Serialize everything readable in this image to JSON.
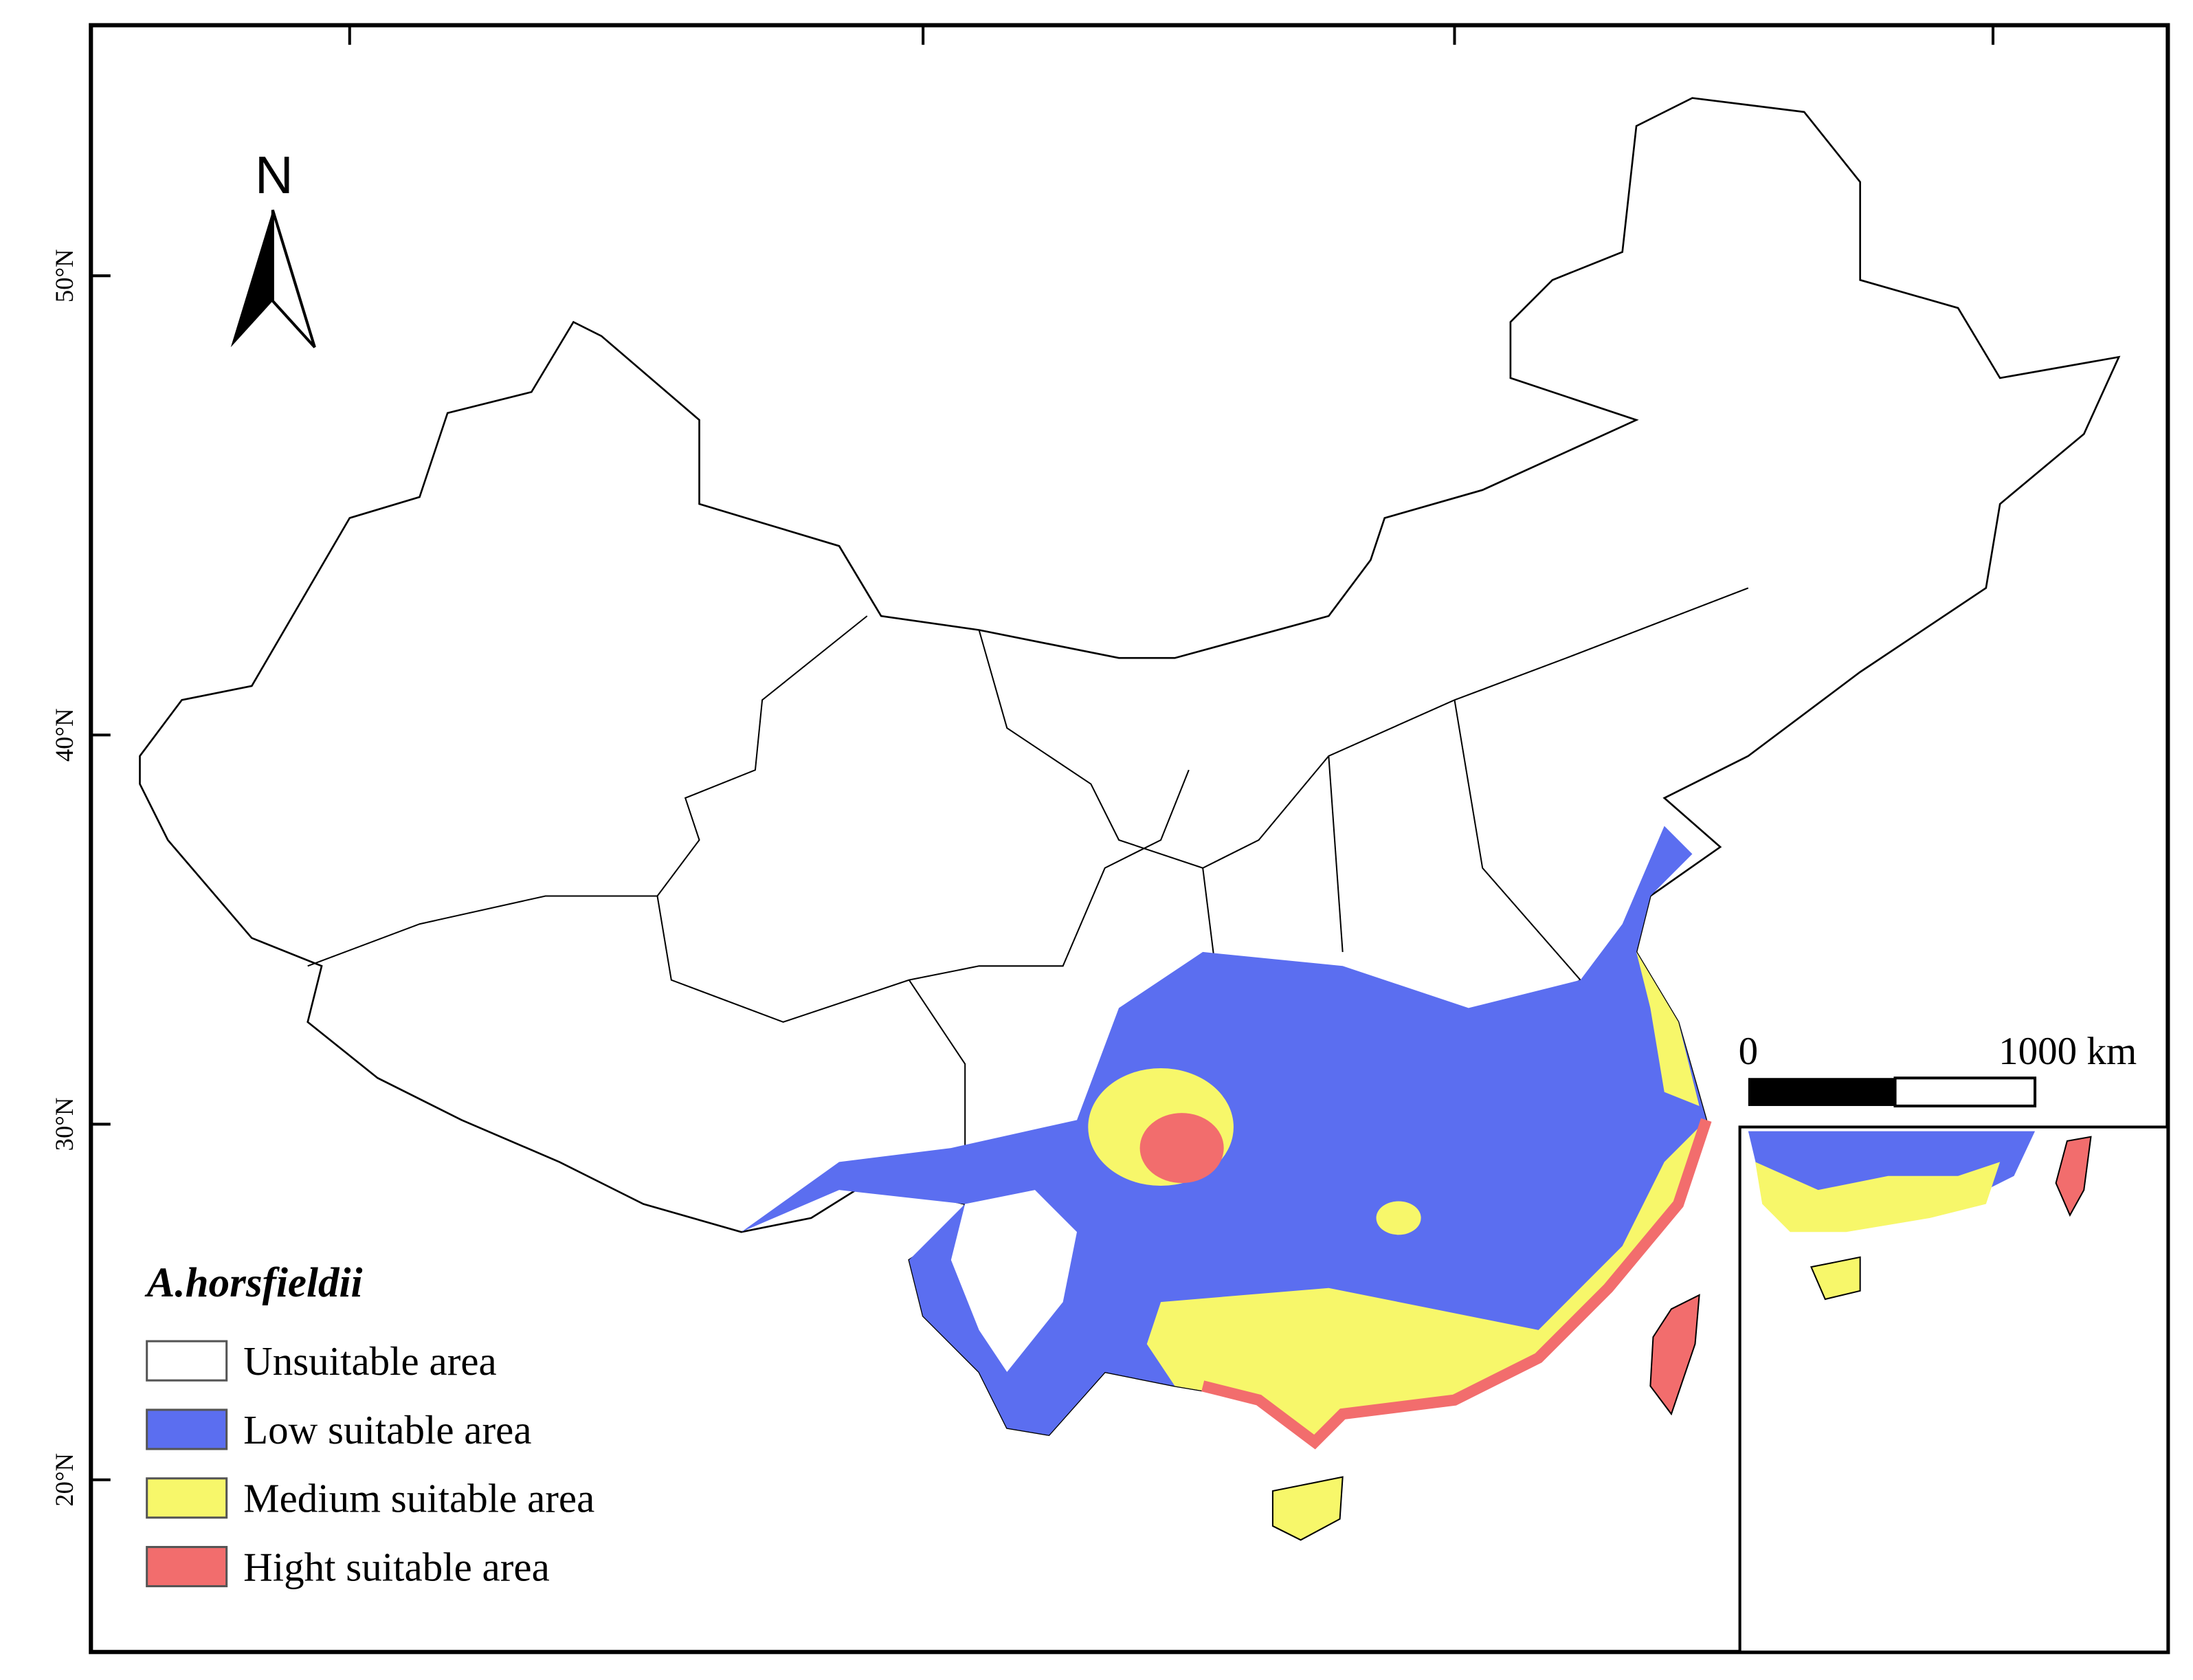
{
  "north_label": "N",
  "lat_labels": [
    "50°N",
    "40°N",
    "30°N",
    "20°N"
  ],
  "legend": {
    "title": "A.horsfieldii",
    "items": [
      "Unsuitable area",
      "Low suitable area",
      "Medium suitable area",
      "Hight suitable area"
    ]
  },
  "scale_bar": {
    "start": "0",
    "end": "1000",
    "unit": "km"
  }
}
